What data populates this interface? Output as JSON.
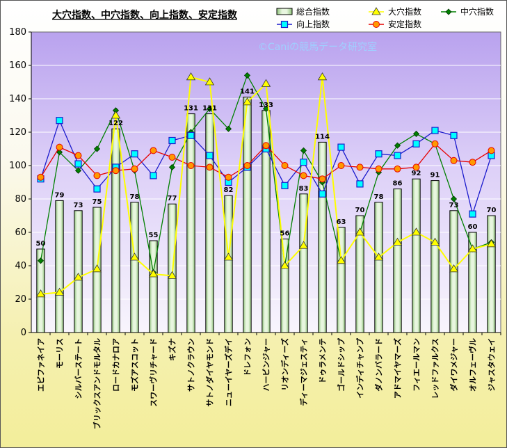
{
  "chart_data": {
    "type": "bar",
    "title": "大穴指数、中穴指数、向上指数、安定指数",
    "watermark": "©Caniの競馬データ研究室",
    "ylim": [
      0,
      180
    ],
    "yticks": [
      0,
      20,
      40,
      60,
      80,
      100,
      120,
      140,
      160,
      180
    ],
    "categories": [
      "エピファネイア",
      "モーリス",
      "シルバーステート",
      "ブリックスアンドモルタル",
      "ロードカナロア",
      "モズアスコット",
      "スワーヴリチャード",
      "キズナ",
      "サトノクラウン",
      "サトノダイヤモンド",
      "ニューイヤーズデイ",
      "ドレフォン",
      "ハービンジャー",
      "リオンディーズ",
      "ディーマジェスティ",
      "ドゥラメンテ",
      "ゴールドシップ",
      "インディチャンプ",
      "ダノンバラード",
      "アドマイヤマーズ",
      "フィエールマン",
      "レッドファルクス",
      "ダイワメジャー",
      "オルフェーヴル",
      "ジャスタウェイ"
    ],
    "series": [
      {
        "name": "総合指数",
        "kind": "bar",
        "color": "#c8e6b4",
        "border": "#000000",
        "values": [
          50,
          79,
          73,
          75,
          122,
          78,
          55,
          77,
          131,
          131,
          82,
          141,
          133,
          56,
          83,
          114,
          63,
          70,
          78,
          86,
          92,
          91,
          73,
          60,
          70
        ],
        "labels": [
          "50",
          "79",
          "73",
          "75",
          "122",
          "78",
          "55",
          "77",
          "131",
          "131",
          "82",
          "141",
          "133",
          "56",
          "83",
          "114",
          "63",
          "70",
          "78",
          "86",
          "92",
          "91",
          "73",
          "60",
          "70"
        ]
      },
      {
        "name": "大穴指数",
        "kind": "line",
        "color": "#ffff00",
        "marker": "triangle",
        "values": [
          23,
          24,
          33,
          38,
          130,
          45,
          35,
          34,
          153,
          150,
          45,
          138,
          149,
          40,
          52,
          153,
          43,
          60,
          45,
          54,
          60,
          54,
          38,
          50,
          53
        ]
      },
      {
        "name": "中穴指数",
        "kind": "line",
        "color": "#008000",
        "marker": "diamond",
        "values": [
          43,
          108,
          97,
          110,
          133,
          97,
          36,
          99,
          120,
          134,
          122,
          154,
          134,
          40,
          109,
          90,
          43,
          60,
          96,
          112,
          119,
          113,
          80,
          50,
          54
        ]
      },
      {
        "name": "向上指数",
        "kind": "line",
        "color": "#1a1acc",
        "marker": "square",
        "values": [
          92,
          127,
          101,
          86,
          99,
          107,
          94,
          115,
          118,
          106,
          90,
          99,
          110,
          88,
          102,
          83,
          111,
          89,
          107,
          106,
          113,
          121,
          118,
          71,
          106
        ]
      },
      {
        "name": "安定指数",
        "kind": "line",
        "color": "#e60000",
        "marker": "circle",
        "values": [
          93,
          111,
          106,
          94,
          97,
          98,
          109,
          105,
          100,
          99,
          93,
          100,
          112,
          100,
          94,
          92,
          100,
          99,
          98,
          98,
          99,
          113,
          103,
          102,
          109
        ]
      }
    ]
  }
}
